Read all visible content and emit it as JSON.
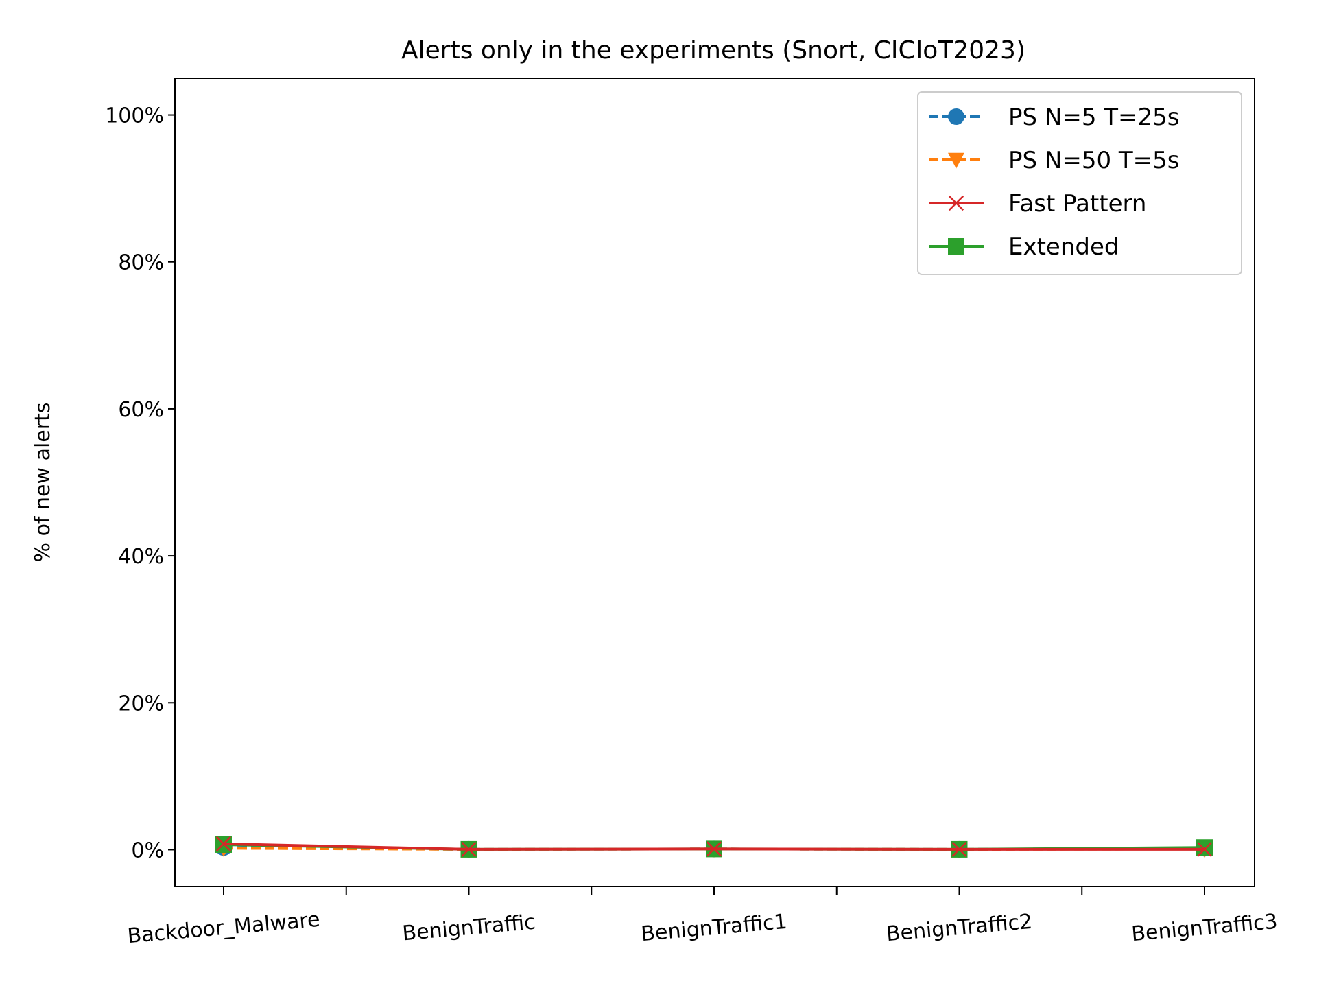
{
  "chart_data": {
    "type": "line",
    "title": "Alerts only in the experiments (Snort, CICIoT2023)",
    "xlabel": "",
    "ylabel": "% of new alerts",
    "categories": [
      "Backdoor_Malware",
      "BenignTraffic",
      "BenignTraffic1",
      "BenignTraffic2",
      "BenignTraffic3"
    ],
    "ylim": [
      -5,
      105
    ],
    "yticks": [
      0,
      20,
      40,
      60,
      80,
      100
    ],
    "ytick_labels": [
      "0%",
      "20%",
      "40%",
      "60%",
      "80%",
      "100%"
    ],
    "grid": false,
    "legend_position": "top-right",
    "series": [
      {
        "name": "PS N=5 T=25s",
        "values": [
          0.3,
          0.05,
          0.1,
          0.05,
          0.2
        ],
        "color": "#1f77b4",
        "line_style": "dashed",
        "marker": "circle"
      },
      {
        "name": "PS N=50 T=5s",
        "values": [
          0.2,
          0.05,
          0.1,
          0.05,
          0.1
        ],
        "color": "#ff7f0e",
        "line_style": "dashed",
        "marker": "triangle-down"
      },
      {
        "name": "Fast Pattern",
        "values": [
          0.8,
          0.05,
          0.1,
          0.05,
          0.05
        ],
        "color": "#d62728",
        "line_style": "solid",
        "marker": "x"
      },
      {
        "name": "Extended",
        "values": [
          0.7,
          0.05,
          0.1,
          0.05,
          0.3
        ],
        "color": "#2ca02c",
        "line_style": "solid",
        "marker": "square"
      }
    ]
  }
}
